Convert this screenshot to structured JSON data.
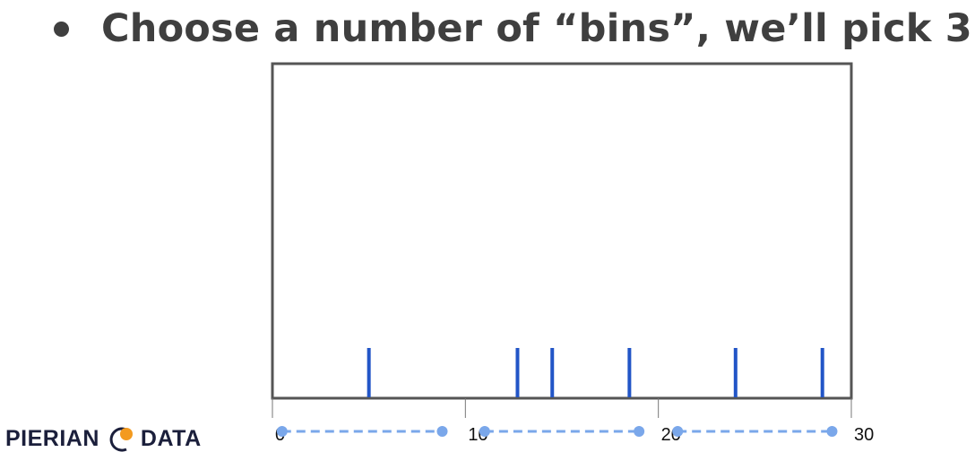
{
  "slide": {
    "bullet_text": "Choose a number of “bins”, we’ll pick 3"
  },
  "logo": {
    "left_text": "PIERIAN",
    "right_text": "DATA",
    "colors": {
      "text": "#1b1f3b",
      "dot": "#f39a1f",
      "ring": "#1b1f3b"
    }
  },
  "chart_data": {
    "type": "rug",
    "x": [
      5,
      12.7,
      14.5,
      18.5,
      24,
      28.5
    ],
    "xlim": [
      0,
      30
    ],
    "xticks": [
      0,
      10,
      20,
      30
    ],
    "xtick_labels": [
      "0",
      "10",
      "20",
      "30"
    ],
    "bins": [
      {
        "start": 0.5,
        "end": 8.8
      },
      {
        "start": 11.0,
        "end": 19.0
      },
      {
        "start": 21.0,
        "end": 29.0
      }
    ],
    "colors": {
      "rug": "#2255c7",
      "bins": "#7aa7ea",
      "axis": "#555555"
    }
  }
}
